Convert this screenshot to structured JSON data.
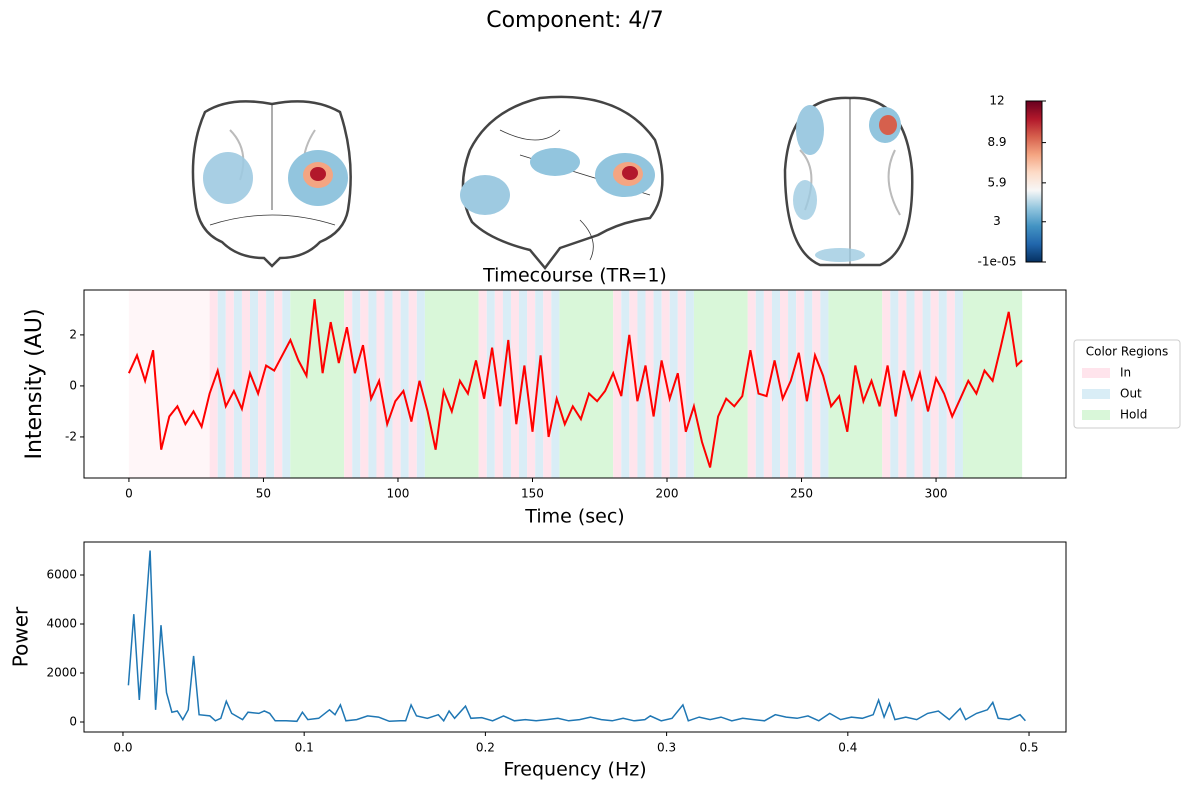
{
  "title": "Component: 4/7",
  "chart_data": [
    {
      "type": "colorbar",
      "clim": [
        -1e-05,
        12
      ],
      "ticks": [
        {
          "value": -1e-05,
          "label": "-1e-05"
        },
        3,
        5.9,
        8.9,
        12
      ],
      "colors": [
        "#053061",
        "#2166ac",
        "#4393c3",
        "#92c5de",
        "#f7f7f7",
        "#fddbc7",
        "#f4a582",
        "#d6604d",
        "#b2182b",
        "#67001f"
      ]
    },
    {
      "type": "line",
      "title": "Timecourse (TR=1)",
      "xlabel": "Time (sec)",
      "ylabel": "Intensity (AU)",
      "color": "#ff0000",
      "xlim": [
        -16.7,
        348.3
      ],
      "ylim": [
        -3.61,
        3.76
      ],
      "xticks": [
        0,
        50,
        100,
        150,
        200,
        250,
        300
      ],
      "yticks": [
        -2,
        0,
        2
      ],
      "legend": {
        "title": "Color Regions",
        "corner": "right",
        "entries": [
          {
            "name": "In",
            "color": "#ffe4ec"
          },
          {
            "name": "Out",
            "color": "#d9edf6"
          },
          {
            "name": "Hold",
            "color": "#d9f7d9"
          }
        ]
      },
      "regions": [
        {
          "start": 0,
          "end": 30,
          "kinds": [
            0
          ],
          "opacity": 0.35
        },
        {
          "start": 30,
          "end": 60,
          "kinds": [
            0,
            1
          ],
          "stripe": 3
        },
        {
          "start": 60,
          "end": 80,
          "kinds": [
            2
          ]
        },
        {
          "start": 80,
          "end": 110,
          "kinds": [
            0,
            1
          ],
          "stripe": 3
        },
        {
          "start": 110,
          "end": 130,
          "kinds": [
            2
          ]
        },
        {
          "start": 130,
          "end": 160,
          "kinds": [
            0,
            1
          ],
          "stripe": 3
        },
        {
          "start": 160,
          "end": 180,
          "kinds": [
            2
          ]
        },
        {
          "start": 180,
          "end": 210,
          "kinds": [
            0,
            1
          ],
          "stripe": 3
        },
        {
          "start": 210,
          "end": 230,
          "kinds": [
            2
          ]
        },
        {
          "start": 230,
          "end": 260,
          "kinds": [
            0,
            1
          ],
          "stripe": 3
        },
        {
          "start": 260,
          "end": 280,
          "kinds": [
            2
          ]
        },
        {
          "start": 280,
          "end": 310,
          "kinds": [
            0,
            1
          ],
          "stripe": 3
        },
        {
          "start": 310,
          "end": 332,
          "kinds": [
            2
          ]
        }
      ],
      "x": [
        0,
        3,
        6,
        9,
        12,
        15,
        18,
        21,
        24,
        27,
        30,
        33,
        36,
        39,
        42,
        45,
        48,
        51,
        54,
        57,
        60,
        63,
        66,
        69,
        72,
        75,
        78,
        81,
        84,
        87,
        90,
        93,
        96,
        99,
        102,
        105,
        108,
        111,
        114,
        117,
        120,
        123,
        126,
        129,
        132,
        135,
        138,
        141,
        144,
        147,
        150,
        153,
        156,
        159,
        162,
        165,
        168,
        171,
        174,
        177,
        180,
        183,
        186,
        189,
        192,
        195,
        198,
        201,
        204,
        207,
        210,
        213,
        216,
        219,
        222,
        225,
        228,
        231,
        234,
        237,
        240,
        243,
        246,
        249,
        252,
        255,
        258,
        261,
        264,
        267,
        270,
        273,
        276,
        279,
        282,
        285,
        288,
        291,
        294,
        297,
        300,
        303,
        306,
        309,
        312,
        315,
        318,
        321,
        324,
        327,
        330,
        332
      ],
      "values": [
        0.5,
        1.2,
        0.2,
        1.4,
        -2.5,
        -1.2,
        -0.8,
        -1.5,
        -1.0,
        -1.6,
        -0.3,
        0.6,
        -0.8,
        -0.2,
        -0.9,
        0.5,
        -0.3,
        0.8,
        0.6,
        1.2,
        1.8,
        1.0,
        0.4,
        3.4,
        0.5,
        2.5,
        0.9,
        2.3,
        0.5,
        1.6,
        -0.5,
        0.2,
        -1.5,
        -0.6,
        -0.2,
        -1.4,
        0.2,
        -1.0,
        -2.5,
        -0.2,
        -1.0,
        0.2,
        -0.3,
        1.0,
        -0.5,
        1.5,
        -0.8,
        1.8,
        -1.5,
        0.8,
        -1.8,
        1.2,
        -2.0,
        -0.5,
        -1.5,
        -0.8,
        -1.3,
        -0.3,
        -0.6,
        -0.2,
        0.5,
        -0.4,
        2.0,
        -0.6,
        0.8,
        -1.2,
        1.0,
        -0.5,
        0.5,
        -1.8,
        -0.8,
        -2.2,
        -3.2,
        -1.2,
        -0.5,
        -0.8,
        -0.4,
        1.4,
        -0.3,
        -0.4,
        1.0,
        -0.5,
        0.2,
        1.3,
        -0.6,
        1.2,
        0.4,
        -0.8,
        -0.4,
        -1.8,
        0.8,
        -0.6,
        0.2,
        -0.8,
        0.8,
        -1.2,
        0.6,
        -0.5,
        0.5,
        -1.0,
        0.3,
        -0.3,
        -1.2,
        -0.5,
        0.2,
        -0.3,
        0.6,
        0.2,
        1.5,
        2.9,
        0.8,
        1.0
      ]
    },
    {
      "type": "line",
      "xlabel": "Frequency (Hz)",
      "ylabel": "Power",
      "color": "#1f77b4",
      "xlim": [
        -0.0215,
        0.5204
      ],
      "ylim": [
        -408,
        7347
      ],
      "xticks": [
        0.0,
        0.1,
        0.2,
        0.3,
        0.4,
        0.5
      ],
      "yticks": [
        0,
        2000,
        4000,
        6000
      ],
      "x": [
        0.003,
        0.006,
        0.009,
        0.015,
        0.018,
        0.021,
        0.024,
        0.027,
        0.03,
        0.033,
        0.036,
        0.039,
        0.042,
        0.048,
        0.051,
        0.054,
        0.057,
        0.06,
        0.066,
        0.069,
        0.075,
        0.078,
        0.081,
        0.084,
        0.09,
        0.096,
        0.099,
        0.102,
        0.108,
        0.114,
        0.117,
        0.12,
        0.123,
        0.129,
        0.135,
        0.141,
        0.147,
        0.153,
        0.156,
        0.159,
        0.162,
        0.168,
        0.174,
        0.177,
        0.18,
        0.183,
        0.189,
        0.192,
        0.198,
        0.204,
        0.21,
        0.216,
        0.222,
        0.228,
        0.234,
        0.24,
        0.246,
        0.252,
        0.258,
        0.264,
        0.27,
        0.276,
        0.282,
        0.288,
        0.291,
        0.297,
        0.303,
        0.309,
        0.312,
        0.318,
        0.324,
        0.33,
        0.336,
        0.342,
        0.348,
        0.354,
        0.36,
        0.366,
        0.372,
        0.378,
        0.384,
        0.39,
        0.396,
        0.402,
        0.408,
        0.414,
        0.417,
        0.42,
        0.423,
        0.426,
        0.432,
        0.438,
        0.444,
        0.45,
        0.456,
        0.462,
        0.465,
        0.471,
        0.477,
        0.48,
        0.483,
        0.489,
        0.495,
        0.498
      ],
      "values": [
        1500,
        4400,
        900,
        7000,
        500,
        3950,
        1200,
        400,
        450,
        100,
        500,
        2700,
        300,
        250,
        50,
        150,
        850,
        350,
        100,
        400,
        350,
        450,
        350,
        50,
        50,
        30,
        400,
        100,
        150,
        500,
        300,
        700,
        50,
        100,
        250,
        200,
        30,
        50,
        50,
        700,
        250,
        150,
        300,
        50,
        450,
        150,
        650,
        150,
        180,
        50,
        250,
        50,
        100,
        50,
        100,
        150,
        50,
        100,
        200,
        100,
        50,
        150,
        50,
        100,
        250,
        50,
        150,
        700,
        50,
        200,
        100,
        200,
        50,
        150,
        100,
        50,
        300,
        200,
        150,
        250,
        50,
        350,
        100,
        200,
        150,
        300,
        900,
        200,
        750,
        100,
        200,
        100,
        350,
        450,
        100,
        550,
        100,
        350,
        500,
        800,
        150,
        100,
        300,
        50
      ]
    }
  ]
}
